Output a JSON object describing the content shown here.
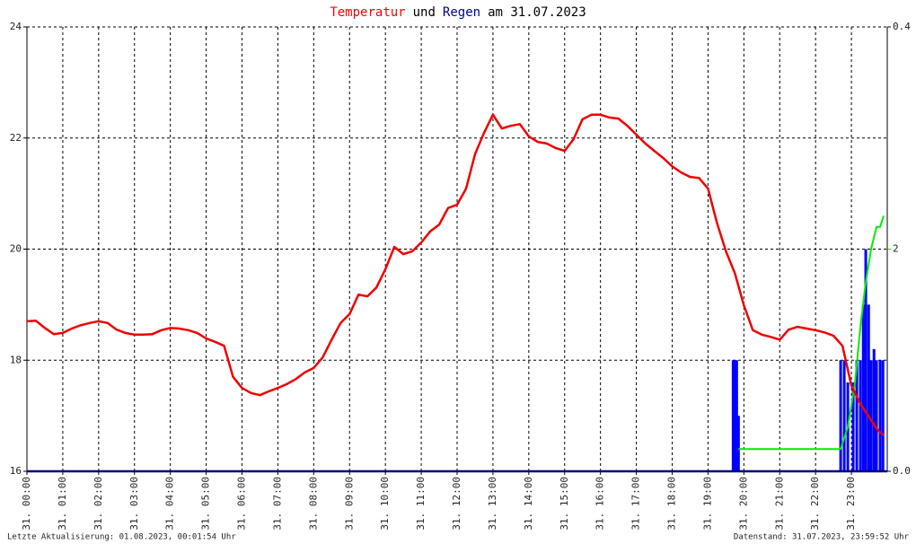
{
  "chart_data": {
    "type": "line",
    "title_parts": [
      {
        "text": "Temperatur",
        "color": "#ff0000"
      },
      {
        "text": "und",
        "color": "#000000"
      },
      {
        "text": "Regen",
        "color": "#000099"
      },
      {
        "text": "am 31.07.2023",
        "color": "#000000"
      }
    ],
    "notes": [
      "Letzte Aktualisierung: 01.08.2023, 00:01:54 Uhr",
      "Datenstand: 31.07.2023, 23:59:52 Uhr"
    ],
    "xlim": [
      0,
      24
    ],
    "xticks": [
      {
        "value": 0,
        "label": "31. 00:00"
      },
      {
        "value": 1,
        "label": "31. 01:00"
      },
      {
        "value": 2,
        "label": "31. 02:00"
      },
      {
        "value": 3,
        "label": "31. 03:00"
      },
      {
        "value": 4,
        "label": "31. 04:00"
      },
      {
        "value": 5,
        "label": "31. 05:00"
      },
      {
        "value": 6,
        "label": "31. 06:00"
      },
      {
        "value": 7,
        "label": "31. 07:00"
      },
      {
        "value": 8,
        "label": "31. 08:00"
      },
      {
        "value": 9,
        "label": "31. 09:00"
      },
      {
        "value": 10,
        "label": "31. 10:00"
      },
      {
        "value": 11,
        "label": "31. 11:00"
      },
      {
        "value": 12,
        "label": "31. 12:00"
      },
      {
        "value": 13,
        "label": "31. 13:00"
      },
      {
        "value": 14,
        "label": "31. 14:00"
      },
      {
        "value": 15,
        "label": "31. 15:00"
      },
      {
        "value": 16,
        "label": "31. 16:00"
      },
      {
        "value": 17,
        "label": "31. 17:00"
      },
      {
        "value": 18,
        "label": "31. 18:00"
      },
      {
        "value": 19,
        "label": "31. 19:00"
      },
      {
        "value": 20,
        "label": "31. 20:00"
      },
      {
        "value": 21,
        "label": "31. 21:00"
      },
      {
        "value": 22,
        "label": "31. 22:00"
      },
      {
        "value": 23,
        "label": "31. 23:00"
      }
    ],
    "ylim": [
      16,
      24
    ],
    "yticks": [
      16,
      18,
      20,
      22,
      24
    ],
    "y2lim": [
      0,
      0.4
    ],
    "y2ticks": [
      {
        "value": 0,
        "label": "0.0"
      },
      {
        "value": 0.4,
        "label": "0.4"
      }
    ],
    "y3lim": [
      0,
      4
    ],
    "y3ticks": [
      2
    ],
    "y3color": "#00ee00",
    "grid": true,
    "series": [
      {
        "type": "line",
        "color": "#ee0000",
        "x": [
          0,
          0.25,
          0.5,
          0.75,
          1,
          1.25,
          1.5,
          1.75,
          2,
          2.25,
          2.5,
          2.75,
          3,
          3.25,
          3.5,
          3.75,
          4,
          4.25,
          4.5,
          4.75,
          5,
          5.25,
          5.5,
          5.75,
          6,
          6.25,
          6.5,
          6.75,
          7,
          7.25,
          7.5,
          7.75,
          8,
          8.25,
          8.5,
          8.75,
          9,
          9.25,
          9.5,
          9.75,
          10,
          10.25,
          10.5,
          10.75,
          11,
          11.25,
          11.5,
          11.75,
          12,
          12.25,
          12.5,
          12.75,
          13,
          13.25,
          13.5,
          13.75,
          14,
          14.25,
          14.5,
          14.75,
          15,
          15.25,
          15.5,
          15.75,
          16,
          16.25,
          16.5,
          16.75,
          17,
          17.25,
          17.5,
          17.75,
          18,
          18.25,
          18.5,
          18.75,
          19,
          19.25,
          19.5,
          19.75,
          20,
          20.25,
          20.5,
          20.75,
          21,
          21.25,
          21.5,
          21.75,
          22,
          22.25,
          22.5,
          22.75,
          23,
          23.25,
          23.5,
          23.75,
          23.9
        ],
        "values": [
          18.7,
          18.71,
          18.58,
          18.47,
          18.49,
          18.57,
          18.63,
          18.67,
          18.7,
          18.67,
          18.55,
          18.49,
          18.46,
          18.46,
          18.47,
          18.54,
          18.58,
          18.57,
          18.54,
          18.49,
          18.39,
          18.33,
          18.26,
          17.7,
          17.5,
          17.41,
          17.37,
          17.44,
          17.5,
          17.57,
          17.66,
          17.78,
          17.86,
          18.05,
          18.37,
          18.67,
          18.83,
          19.18,
          19.15,
          19.31,
          19.64,
          20.04,
          19.91,
          19.96,
          20.12,
          20.32,
          20.44,
          20.74,
          20.8,
          21.09,
          21.71,
          22.09,
          22.42,
          22.17,
          22.22,
          22.25,
          22.03,
          21.93,
          21.9,
          21.82,
          21.77,
          21.98,
          22.34,
          22.42,
          22.42,
          22.37,
          22.35,
          22.22,
          22.06,
          21.9,
          21.77,
          21.64,
          21.49,
          21.38,
          21.3,
          21.28,
          21.09,
          20.47,
          19.96,
          19.56,
          18.99,
          18.54,
          18.46,
          18.42,
          18.37,
          18.55,
          18.6,
          18.57,
          18.54,
          18.5,
          18.44,
          18.26,
          17.54,
          17.21,
          16.97,
          16.73,
          16.65
        ]
      },
      {
        "type": "bar",
        "axis": "y2",
        "color": "#0000ff",
        "x": [
          19.7,
          19.75,
          19.8,
          19.85,
          22.7,
          22.8,
          22.9,
          23.05,
          23.15,
          23.25,
          23.33,
          23.4,
          23.48,
          23.55,
          23.63,
          23.7,
          23.8,
          23.88
        ],
        "values": [
          0.1,
          0.1,
          0.1,
          0.05,
          0.1,
          0.1,
          0.08,
          0.08,
          0.1,
          0.1,
          0.15,
          0.2,
          0.15,
          0.1,
          0.11,
          0.1,
          0.1,
          0.1
        ]
      },
      {
        "type": "line",
        "axis": "y3",
        "color": "#00ee00",
        "x": [
          19.85,
          22.7,
          22.9,
          23.1,
          23.25,
          23.4,
          23.55,
          23.7,
          23.8,
          23.9
        ],
        "values": [
          0.2,
          0.2,
          0.4,
          0.8,
          1.3,
          1.7,
          2.0,
          2.2,
          2.2,
          2.3
        ]
      }
    ]
  }
}
